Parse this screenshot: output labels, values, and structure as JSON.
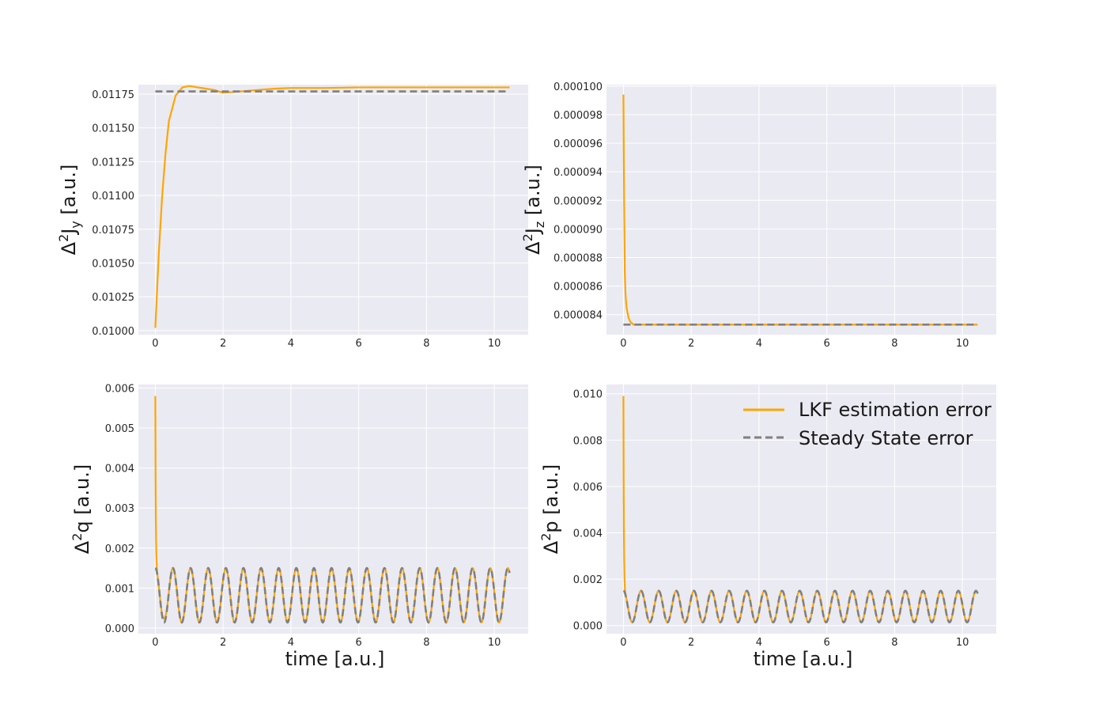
{
  "colors": {
    "lkf": "#FFA500",
    "steady": "#808080",
    "panel_bg": "#EAEAF2",
    "grid": "#FFFFFF"
  },
  "legend": {
    "placement": "top-right",
    "lkf_label": "LKF estimation error",
    "steady_label": "Steady State error"
  },
  "chart_data": [
    {
      "type": "line",
      "ylabel_symbol": "Δ",
      "ylabel_sup": "2",
      "ylabel_var": "J",
      "ylabel_sub": "y",
      "ylabel_unit": " [a.u.]",
      "xlabel": "",
      "xlim": [
        -0.5,
        11.0
      ],
      "ylim": [
        0.00997,
        0.01182
      ],
      "xticks": [
        0,
        2,
        4,
        6,
        8,
        10
      ],
      "xtick_labels": [
        "0",
        "2",
        "4",
        "6",
        "8",
        "10"
      ],
      "yticks": [
        0.01,
        0.01025,
        0.0105,
        0.01075,
        0.011,
        0.01125,
        0.0115,
        0.01175
      ],
      "ytick_labels": [
        "0.01000",
        "0.01025",
        "0.01050",
        "0.01075",
        "0.01100",
        "0.01125",
        "0.01150",
        "0.01175"
      ],
      "series": [
        {
          "name": "LKF estimation error",
          "x": [
            0,
            0.1,
            0.2,
            0.3,
            0.4,
            0.6,
            0.8,
            1.0,
            1.25,
            1.5,
            1.75,
            2.0,
            2.5,
            3.0,
            3.5,
            4.0,
            5.0,
            6.0,
            7.0,
            8.0,
            9.0,
            10.0,
            10.45
          ],
          "values": [
            0.01002,
            0.01056,
            0.01099,
            0.01131,
            0.01155,
            0.01174,
            0.0118,
            0.01181,
            0.0118,
            0.01179,
            0.01178,
            0.01176,
            0.01177,
            0.01178,
            0.01179,
            0.011795,
            0.011795,
            0.0118,
            0.0118,
            0.0118,
            0.0118,
            0.0118,
            0.0118
          ]
        },
        {
          "name": "Steady State error",
          "x": [
            0,
            10.45
          ],
          "values": [
            0.01177,
            0.01177
          ]
        }
      ]
    },
    {
      "type": "line",
      "ylabel_symbol": "Δ",
      "ylabel_sup": "2",
      "ylabel_var": "J",
      "ylabel_sub": "z",
      "ylabel_unit": " [a.u.]",
      "xlabel": "",
      "xlim": [
        -0.5,
        11.0
      ],
      "ylim": [
        8.26e-05,
        0.0001001
      ],
      "xticks": [
        0,
        2,
        4,
        6,
        8,
        10
      ],
      "xtick_labels": [
        "0",
        "2",
        "4",
        "6",
        "8",
        "10"
      ],
      "yticks": [
        8.4e-05,
        8.6e-05,
        8.8e-05,
        9e-05,
        9.2e-05,
        9.4e-05,
        9.6e-05,
        9.8e-05,
        0.0001
      ],
      "ytick_labels": [
        "0.000084",
        "0.000086",
        "0.000088",
        "0.000090",
        "0.000092",
        "0.000094",
        "0.000096",
        "0.000098",
        "0.000100"
      ],
      "series": [
        {
          "name": "LKF estimation error",
          "x": [
            0,
            0.02,
            0.04,
            0.06,
            0.08,
            0.1,
            0.15,
            0.2,
            0.3,
            10.45
          ],
          "values": [
            9.94e-05,
            9.2e-05,
            8.7e-05,
            8.55e-05,
            8.48e-05,
            8.44e-05,
            8.38e-05,
            8.35e-05,
            8.33e-05,
            8.33e-05
          ]
        },
        {
          "name": "Steady State error",
          "x": [
            0,
            10.45
          ],
          "values": [
            8.33e-05,
            8.33e-05
          ]
        }
      ]
    },
    {
      "type": "line",
      "ylabel_symbol": "Δ",
      "ylabel_sup": "2",
      "ylabel_var": "q",
      "ylabel_sub": "",
      "ylabel_unit": " [a.u.]",
      "xlabel": "time [a.u.]",
      "xlim": [
        -0.5,
        11.0
      ],
      "ylim": [
        -0.00014,
        0.00609
      ],
      "xticks": [
        0,
        2,
        4,
        6,
        8,
        10
      ],
      "xtick_labels": [
        "0",
        "2",
        "4",
        "6",
        "8",
        "10"
      ],
      "yticks": [
        0,
        0.001,
        0.002,
        0.003,
        0.004,
        0.005,
        0.006
      ],
      "ytick_labels": [
        "0.000",
        "0.001",
        "0.002",
        "0.003",
        "0.004",
        "0.005",
        "0.006"
      ],
      "oscillation": {
        "x_start": 0,
        "x_end": 10.45,
        "min": 0.00014,
        "max": 0.0015,
        "period": 0.52,
        "initial_peak": 0.0058,
        "peak_overshoot": 0.0016
      },
      "series": [
        {
          "name": "LKF estimation error"
        },
        {
          "name": "Steady State error"
        }
      ]
    },
    {
      "type": "line",
      "ylabel_symbol": "Δ",
      "ylabel_sup": "2",
      "ylabel_var": "p",
      "ylabel_sub": "",
      "ylabel_unit": " [a.u.]",
      "xlabel": "time [a.u.]",
      "xlim": [
        -0.5,
        11.0
      ],
      "ylim": [
        -0.00035,
        0.0104
      ],
      "xticks": [
        0,
        2,
        4,
        6,
        8,
        10
      ],
      "xtick_labels": [
        "0",
        "2",
        "4",
        "6",
        "8",
        "10"
      ],
      "yticks": [
        0,
        0.002,
        0.004,
        0.006,
        0.008,
        0.01
      ],
      "ytick_labels": [
        "0.000",
        "0.002",
        "0.004",
        "0.006",
        "0.008",
        "0.010"
      ],
      "oscillation": {
        "x_start": 0,
        "x_end": 10.45,
        "min": 0.00014,
        "max": 0.0015,
        "period": 0.52,
        "initial_peak": 0.0099,
        "peak_overshoot": 0.0015
      },
      "series": [
        {
          "name": "LKF estimation error"
        },
        {
          "name": "Steady State error"
        }
      ]
    }
  ]
}
